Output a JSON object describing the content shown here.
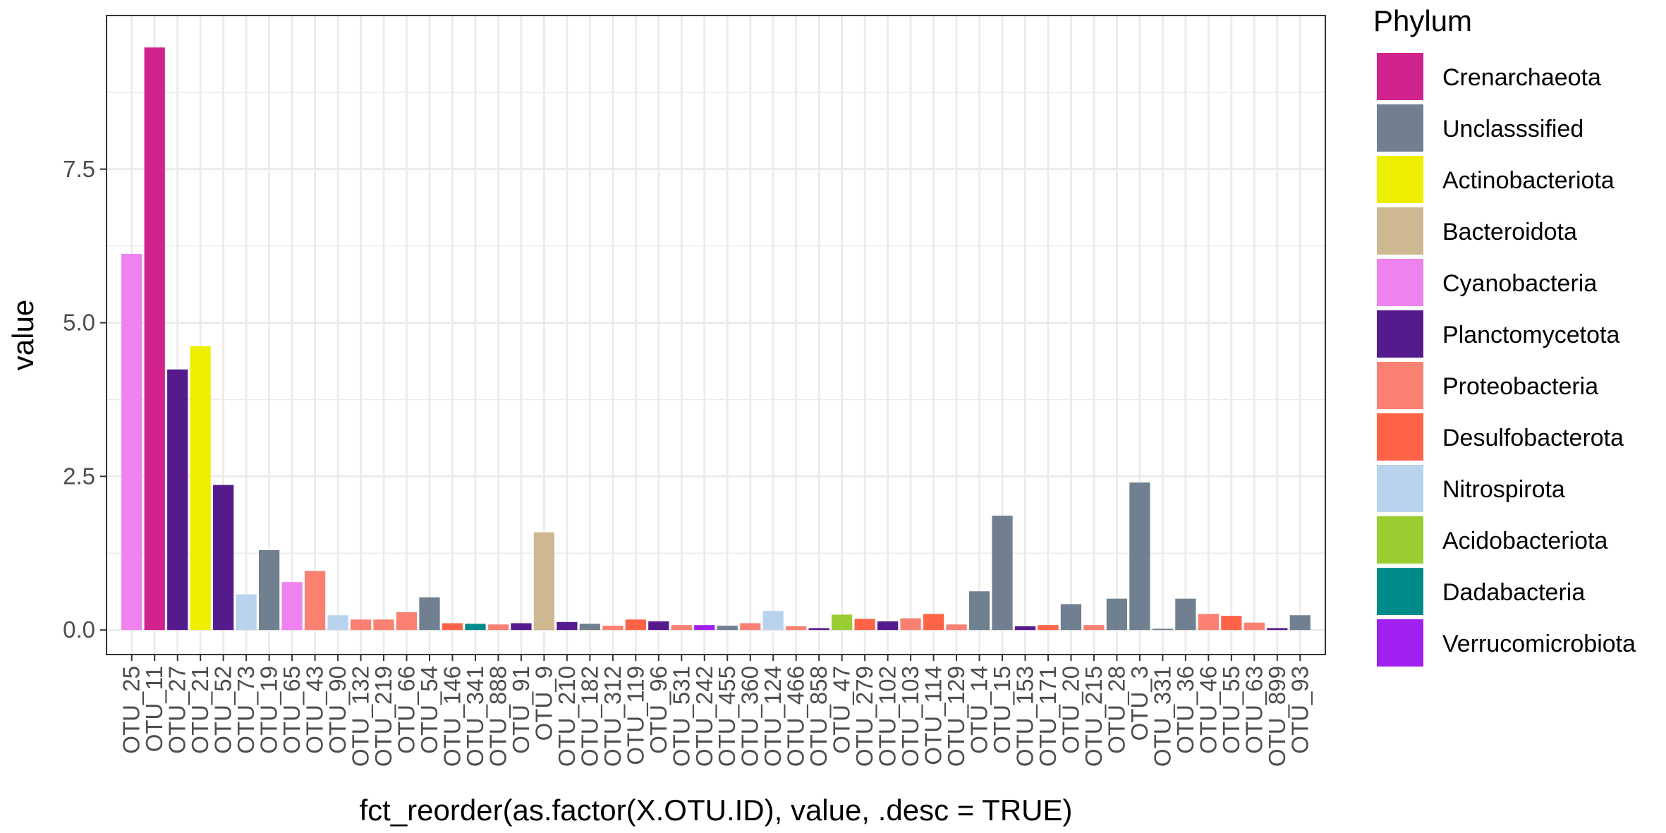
{
  "chart_data": {
    "type": "bar",
    "xlabel": "fct_reorder(as.factor(X.OTU.ID), value, .desc = TRUE)",
    "ylabel": "value",
    "ylim": [
      -0.4,
      10.0
    ],
    "yticks": [
      0.0,
      2.5,
      5.0,
      7.5
    ],
    "ytick_labels": [
      "0.0",
      "2.5",
      "5.0",
      "7.5"
    ],
    "grid": true,
    "legend": {
      "title": "Phylum",
      "position": "right",
      "entries": [
        {
          "name": "Crenarchaeota",
          "color": "#D0238D"
        },
        {
          "name": "Unclasssified",
          "color": "#708090"
        },
        {
          "name": "Actinobacteriota",
          "color": "#EEEE00"
        },
        {
          "name": "Bacteroidota",
          "color": "#CDB891"
        },
        {
          "name": "Cyanobacteria",
          "color": "#EE82EE"
        },
        {
          "name": "Planctomycetota",
          "color": "#551A8B"
        },
        {
          "name": "Proteobacteria",
          "color": "#FA8072"
        },
        {
          "name": "Desulfobacterota",
          "color": "#FF6347"
        },
        {
          "name": "Nitrospirota",
          "color": "#B9D3EE"
        },
        {
          "name": "Acidobacteriota",
          "color": "#9ACD32"
        },
        {
          "name": "Dadabacteria",
          "color": "#008B8B"
        },
        {
          "name": "Verrucomicrobiota",
          "color": "#A020F0"
        }
      ]
    },
    "categories": [
      "OTU_25",
      "OTU_11",
      "OTU_27",
      "OTU_21",
      "OTU_52",
      "OTU_73",
      "OTU_19",
      "OTU_65",
      "OTU_43",
      "OTU_90",
      "OTU_132",
      "OTU_219",
      "OTU_66",
      "OTU_54",
      "OTU_146",
      "OTU_341",
      "OTU_888",
      "OTU_91",
      "OTU_9",
      "OTU_210",
      "OTU_182",
      "OTU_312",
      "OTU_119",
      "OTU_96",
      "OTU_531",
      "OTU_242",
      "OTU_455",
      "OTU_360",
      "OTU_124",
      "OTU_466",
      "OTU_858",
      "OTU_47",
      "OTU_279",
      "OTU_102",
      "OTU_103",
      "OTU_114",
      "OTU_129",
      "OTU_14",
      "OTU_15",
      "OTU_153",
      "OTU_171",
      "OTU_20",
      "OTU_215",
      "OTU_28",
      "OTU_3",
      "OTU_331",
      "OTU_36",
      "OTU_46",
      "OTU_55",
      "OTU_63",
      "OTU_899",
      "OTU_93"
    ],
    "values": [
      6.12,
      9.48,
      4.24,
      4.62,
      2.36,
      0.58,
      1.3,
      0.78,
      0.96,
      0.24,
      0.17,
      0.17,
      0.29,
      0.53,
      0.11,
      0.1,
      0.09,
      0.11,
      1.59,
      0.13,
      0.1,
      0.07,
      0.17,
      0.14,
      0.08,
      0.08,
      0.07,
      0.11,
      0.31,
      0.06,
      0.03,
      0.25,
      0.18,
      0.14,
      0.19,
      0.26,
      0.09,
      0.63,
      1.86,
      0.06,
      0.08,
      0.42,
      0.08,
      0.51,
      2.4,
      0.02,
      0.51,
      0.26,
      0.23,
      0.12,
      0.03,
      0.24
    ],
    "phyla": [
      "Cyanobacteria",
      "Crenarchaeota",
      "Planctomycetota",
      "Actinobacteriota",
      "Planctomycetota",
      "Nitrospirota",
      "Unclasssified",
      "Cyanobacteria",
      "Proteobacteria",
      "Nitrospirota",
      "Proteobacteria",
      "Proteobacteria",
      "Proteobacteria",
      "Unclasssified",
      "Desulfobacterota",
      "Dadabacteria",
      "Proteobacteria",
      "Planctomycetota",
      "Bacteroidota",
      "Planctomycetota",
      "Unclasssified",
      "Proteobacteria",
      "Desulfobacterota",
      "Planctomycetota",
      "Proteobacteria",
      "Verrucomicrobiota",
      "Unclasssified",
      "Proteobacteria",
      "Nitrospirota",
      "Proteobacteria",
      "Planctomycetota",
      "Acidobacteriota",
      "Desulfobacterota",
      "Planctomycetota",
      "Proteobacteria",
      "Desulfobacterota",
      "Proteobacteria",
      "Unclasssified",
      "Unclasssified",
      "Planctomycetota",
      "Desulfobacterota",
      "Unclasssified",
      "Proteobacteria",
      "Unclasssified",
      "Unclasssified",
      "Unclasssified",
      "Unclasssified",
      "Proteobacteria",
      "Desulfobacterota",
      "Proteobacteria",
      "Planctomycetota",
      "Unclasssified"
    ]
  }
}
